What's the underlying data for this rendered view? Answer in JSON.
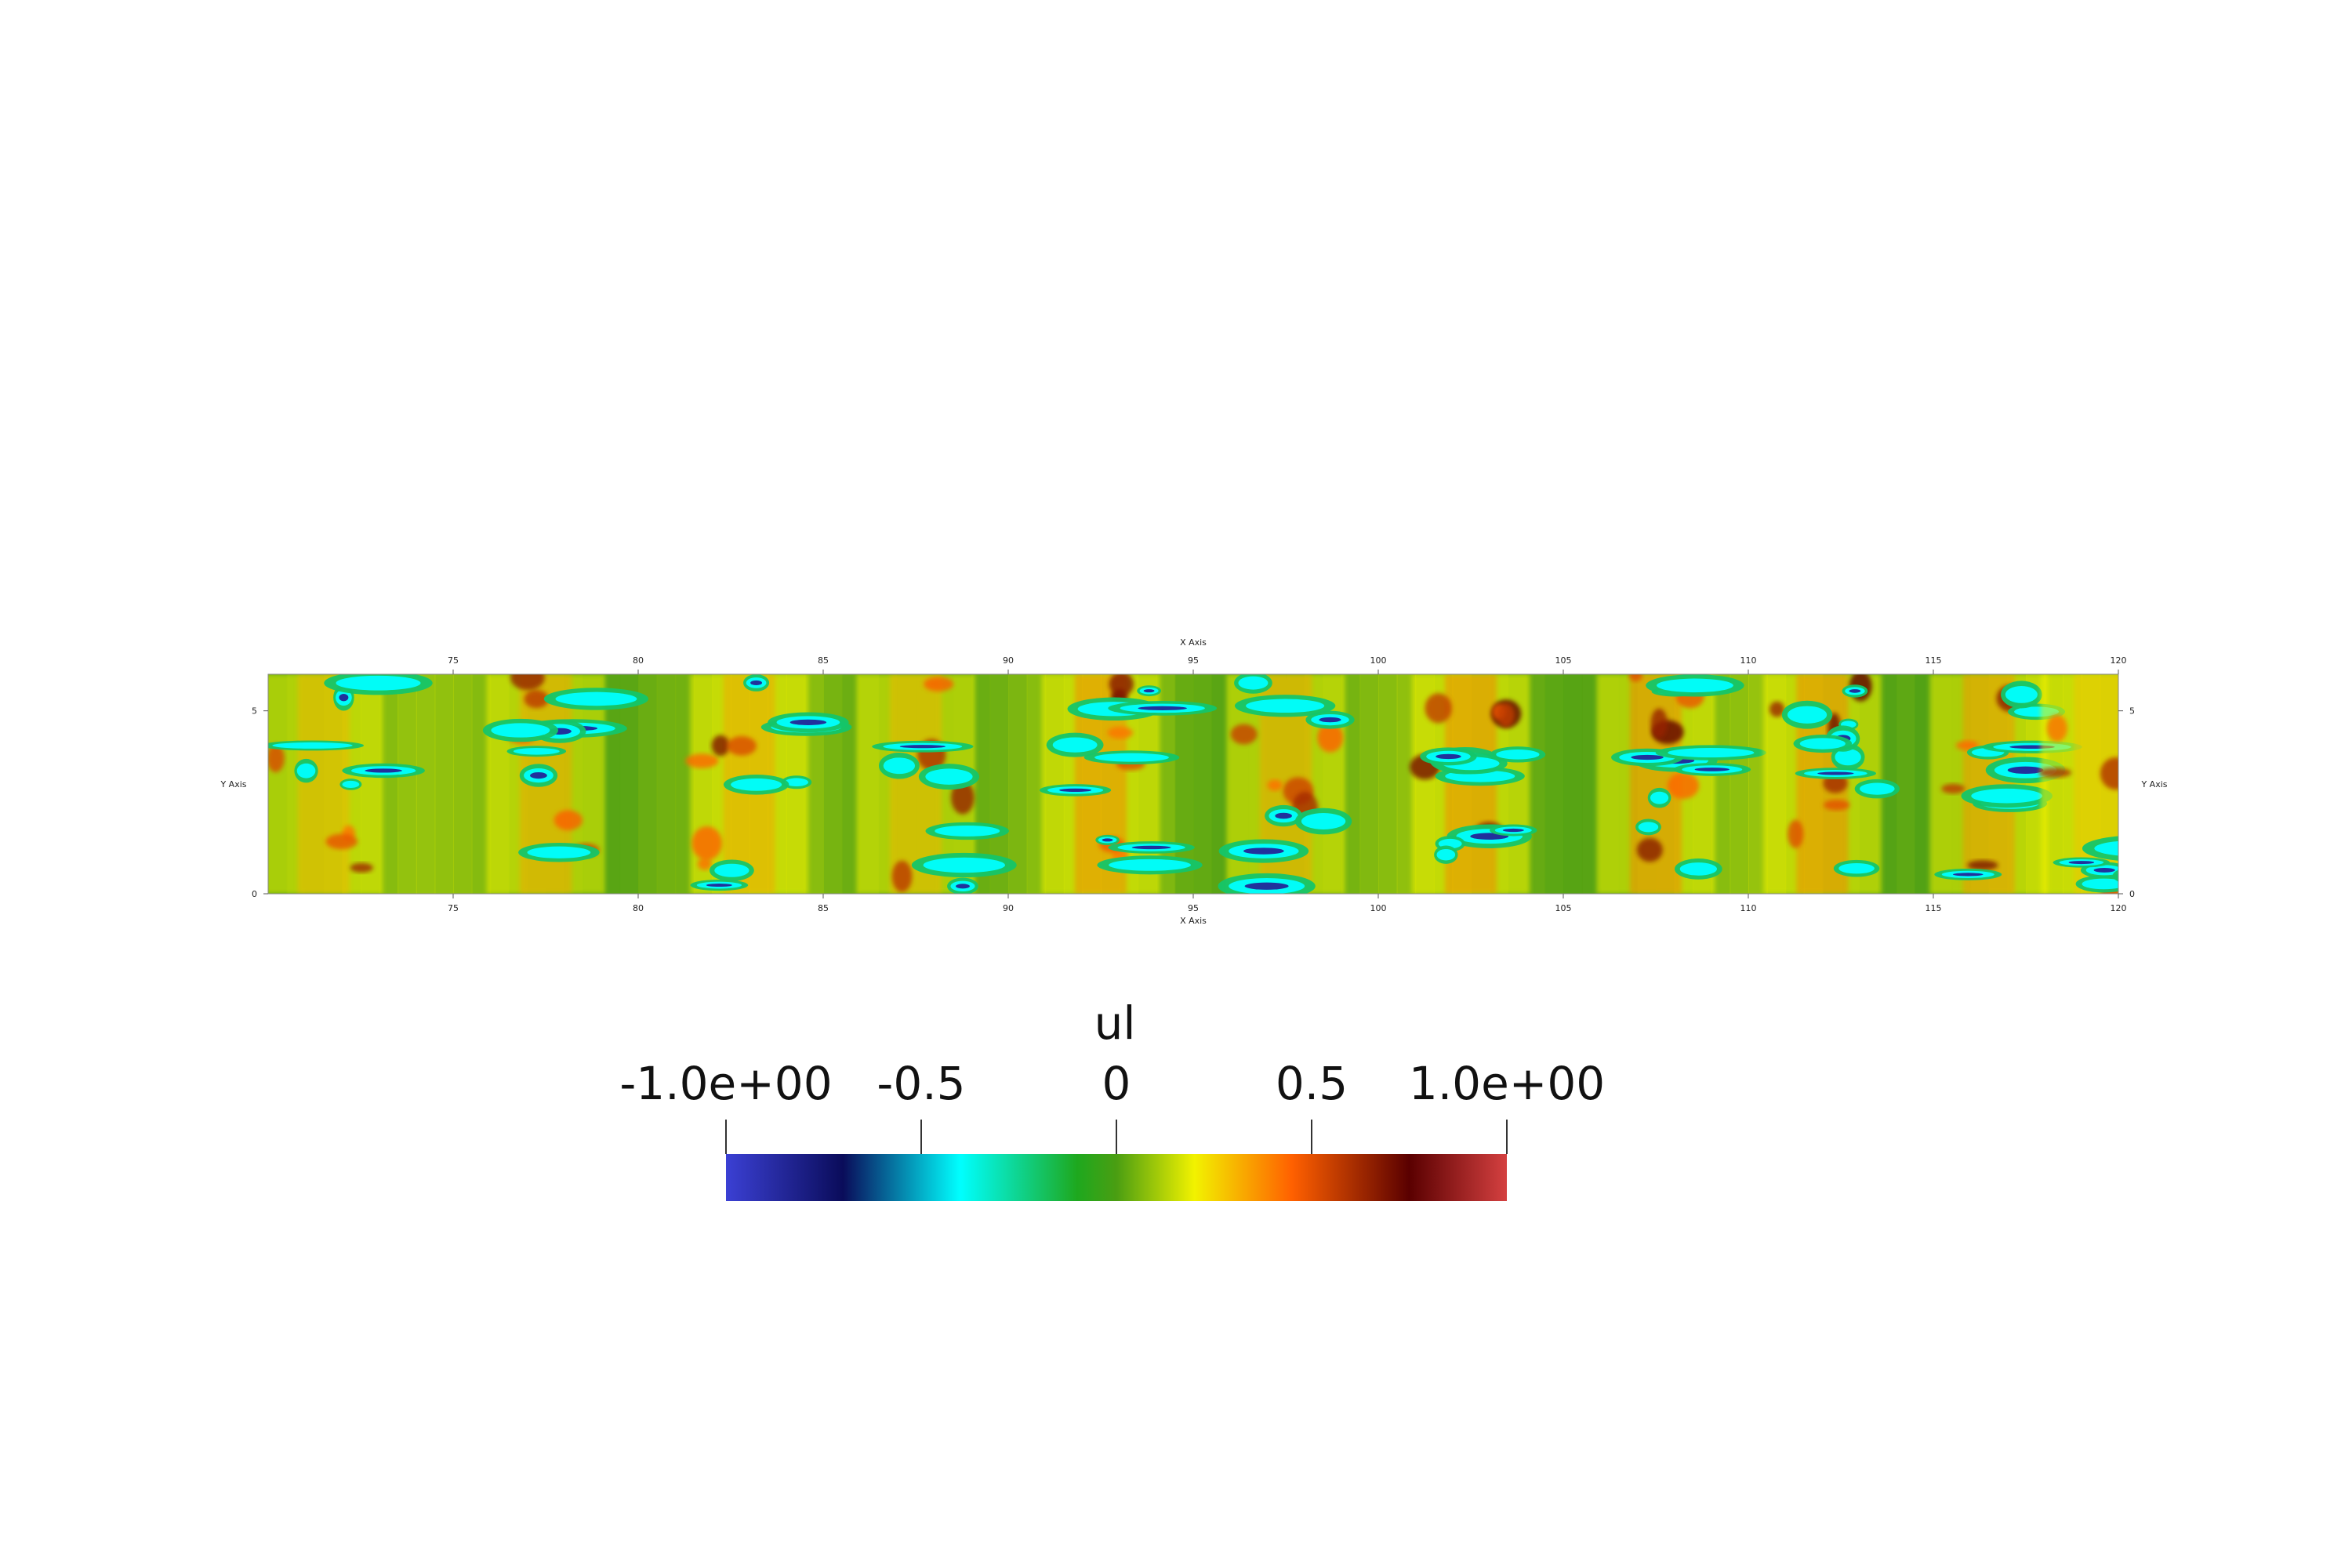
{
  "chart_data": {
    "type": "heatmap",
    "title": "",
    "xlabel": "X Axis",
    "ylabel": "Y Axis",
    "xlim": [
      70,
      120
    ],
    "ylim": [
      0,
      6
    ],
    "x_ticks": [
      "75",
      "80",
      "85",
      "90",
      "95",
      "100",
      "105",
      "110",
      "115",
      "120"
    ],
    "x_tick_values": [
      75,
      80,
      85,
      90,
      95,
      100,
      105,
      110,
      115,
      120
    ],
    "y_ticks": [
      "0",
      "5"
    ],
    "y_tick_values": [
      0,
      5
    ],
    "field_pattern": {
      "description_of_field": "ul",
      "band_centers_x": [
        71.5,
        77.5,
        83,
        87.5,
        92.5,
        97.5,
        102.5,
        107.5,
        112,
        116.5,
        119.5
      ],
      "band_strength": [
        0.7,
        0.8,
        0.8,
        0.7,
        1.0,
        0.8,
        1.0,
        1.0,
        1.0,
        0.9,
        0.6
      ]
    },
    "colorbar": {
      "title": "ul",
      "range": [
        -1.0,
        1.0
      ],
      "ticks": [
        -1.0,
        -0.5,
        0,
        0.5,
        1.0
      ],
      "tick_labels": [
        "-1.0e+00",
        "-0.5",
        "0",
        "0.5",
        "1.0e+00"
      ],
      "colormap": [
        {
          "v": -1.0,
          "color": "#3b40d4"
        },
        {
          "v": -0.7,
          "color": "#0a0c5a"
        },
        {
          "v": -0.4,
          "color": "#00ffff"
        },
        {
          "v": -0.1,
          "color": "#1ea81e"
        },
        {
          "v": 0.0,
          "color": "#4a9e12"
        },
        {
          "v": 0.2,
          "color": "#f2f200"
        },
        {
          "v": 0.45,
          "color": "#ff6000"
        },
        {
          "v": 0.75,
          "color": "#5a0000"
        },
        {
          "v": 1.0,
          "color": "#d44040"
        }
      ]
    }
  }
}
